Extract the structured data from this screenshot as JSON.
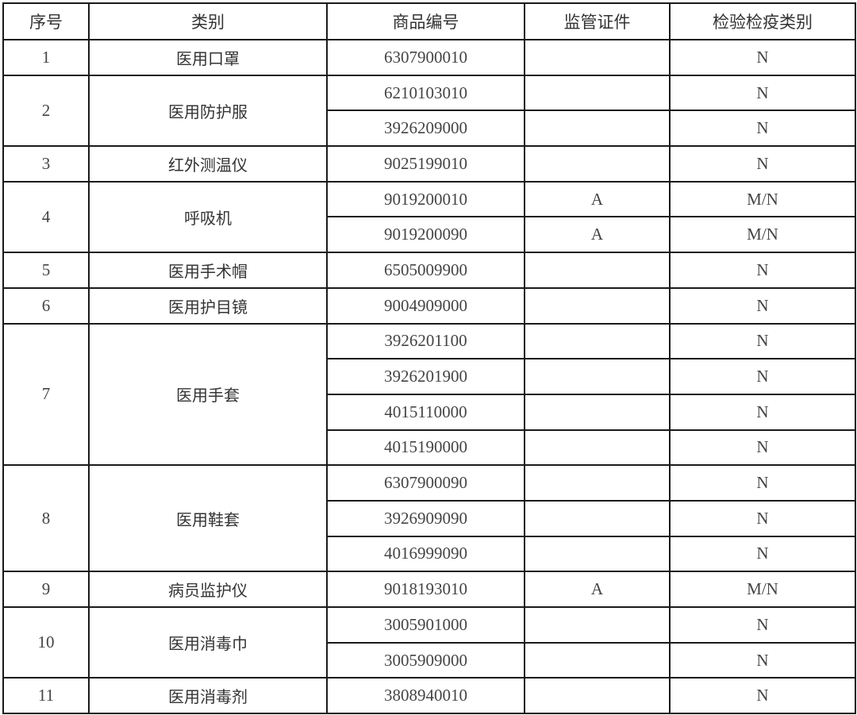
{
  "headers": [
    "序号",
    "类别",
    "商品编号",
    "监管证件",
    "检验检疫类别"
  ],
  "groups": [
    {
      "no": "1",
      "category": "医用口罩",
      "items": [
        {
          "code": "6307900010",
          "permit": "",
          "inspection": "N"
        }
      ]
    },
    {
      "no": "2",
      "category": "医用防护服",
      "items": [
        {
          "code": "6210103010",
          "permit": "",
          "inspection": "N"
        },
        {
          "code": "3926209000",
          "permit": "",
          "inspection": "N"
        }
      ]
    },
    {
      "no": "3",
      "category": "红外测温仪",
      "items": [
        {
          "code": "9025199010",
          "permit": "",
          "inspection": "N"
        }
      ]
    },
    {
      "no": "4",
      "category": "呼吸机",
      "items": [
        {
          "code": "9019200010",
          "permit": "A",
          "inspection": "M/N"
        },
        {
          "code": "9019200090",
          "permit": "A",
          "inspection": "M/N"
        }
      ]
    },
    {
      "no": "5",
      "category": "医用手术帽",
      "items": [
        {
          "code": "6505009900",
          "permit": "",
          "inspection": "N"
        }
      ]
    },
    {
      "no": "6",
      "category": "医用护目镜",
      "items": [
        {
          "code": "9004909000",
          "permit": "",
          "inspection": "N"
        }
      ]
    },
    {
      "no": "7",
      "category": "医用手套",
      "items": [
        {
          "code": "3926201100",
          "permit": "",
          "inspection": "N"
        },
        {
          "code": "3926201900",
          "permit": "",
          "inspection": "N"
        },
        {
          "code": "4015110000",
          "permit": "",
          "inspection": "N"
        },
        {
          "code": "4015190000",
          "permit": "",
          "inspection": "N"
        }
      ]
    },
    {
      "no": "8",
      "category": "医用鞋套",
      "items": [
        {
          "code": "6307900090",
          "permit": "",
          "inspection": "N"
        },
        {
          "code": "3926909090",
          "permit": "",
          "inspection": "N"
        },
        {
          "code": "4016999090",
          "permit": "",
          "inspection": "N"
        }
      ]
    },
    {
      "no": "9",
      "category": "病员监护仪",
      "items": [
        {
          "code": "9018193010",
          "permit": "A",
          "inspection": "M/N"
        }
      ]
    },
    {
      "no": "10",
      "category": "医用消毒巾",
      "items": [
        {
          "code": "3005901000",
          "permit": "",
          "inspection": "N"
        },
        {
          "code": "3005909000",
          "permit": "",
          "inspection": "N"
        }
      ]
    },
    {
      "no": "11",
      "category": "医用消毒剂",
      "items": [
        {
          "code": "3808940010",
          "permit": "",
          "inspection": "N"
        }
      ]
    }
  ]
}
